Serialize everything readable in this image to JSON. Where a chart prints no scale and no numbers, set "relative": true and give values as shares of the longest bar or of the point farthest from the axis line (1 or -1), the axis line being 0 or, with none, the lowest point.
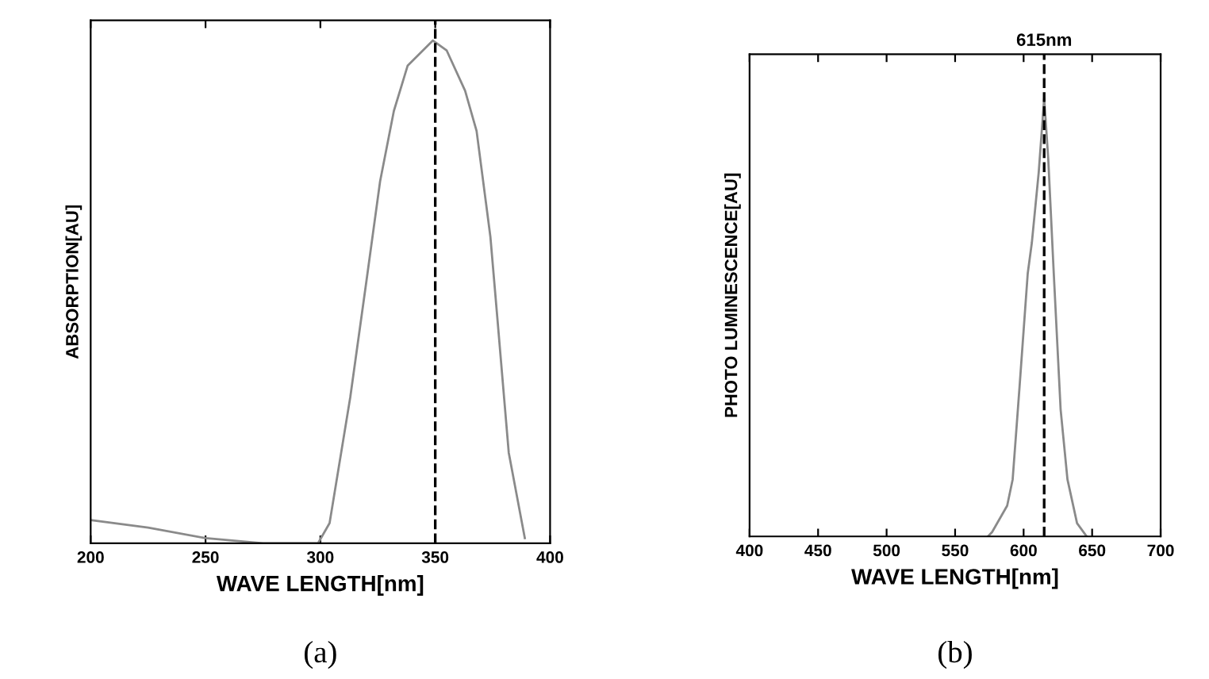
{
  "chart_data": [
    {
      "type": "line",
      "relative": true,
      "xlabel": "WAVE LENGTH[nm]",
      "ylabel": "ABSORPTION[AU]",
      "annotations": [
        "(a)"
      ],
      "xlim": [
        200,
        400
      ],
      "xticks": [
        200,
        250,
        300,
        350,
        400
      ],
      "grid": false,
      "legend": false,
      "series": [
        {
          "color": "#8a8a8a",
          "x": [
            200,
            225,
            250,
            275,
            299,
            304,
            313,
            320,
            326,
            332,
            338,
            349,
            355,
            363,
            368,
            374,
            377,
            382,
            389
          ],
          "values": [
            0.046,
            0.031,
            0.01,
            0,
            0,
            0.04,
            0.29,
            0.52,
            0.72,
            0.86,
            0.95,
            1.0,
            0.98,
            0.9,
            0.82,
            0.61,
            0.45,
            0.18,
            0.01
          ]
        }
      ],
      "ref_lines": [
        {
          "axis": "x",
          "value": 350,
          "color": "#000000",
          "line_style": "dashed"
        }
      ]
    },
    {
      "type": "line",
      "relative": true,
      "xlabel": "WAVE LENGTH[nm]",
      "ylabel": "PHOTO LUMINESCENCE[AU]",
      "annotations": [
        "(b)"
      ],
      "xlim": [
        400,
        700
      ],
      "xticks": [
        400,
        450,
        500,
        550,
        600,
        650,
        700
      ],
      "grid": false,
      "legend": false,
      "series": [
        {
          "color": "#8a8a8a",
          "x": [
            574,
            577,
            588,
            592,
            597,
            603,
            606,
            611,
            615,
            618,
            622,
            627,
            632,
            639,
            646
          ],
          "values": [
            0,
            0.01,
            0.07,
            0.13,
            0.34,
            0.6,
            0.67,
            0.83,
            1.0,
            0.86,
            0.6,
            0.29,
            0.13,
            0.03,
            0
          ]
        }
      ],
      "ref_lines": [
        {
          "axis": "x",
          "value": 615,
          "label": "615nm",
          "color": "#000000",
          "line_style": "dashed"
        }
      ]
    }
  ]
}
